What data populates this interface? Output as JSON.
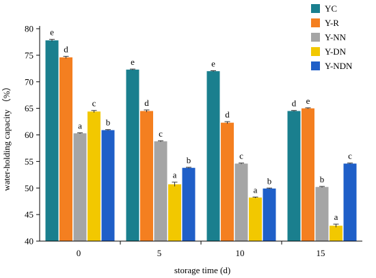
{
  "chart_data": {
    "type": "bar",
    "title": "",
    "xlabel": "storage time (d)",
    "ylabel": "water-holding capacity （%）",
    "ylim": [
      40,
      80
    ],
    "yticks": [
      40,
      45,
      50,
      55,
      60,
      65,
      70,
      75,
      80
    ],
    "categories": [
      "0",
      "5",
      "10",
      "15"
    ],
    "grid": false,
    "legend_position": "top-right",
    "series": [
      {
        "name": "YC",
        "color": "#1a7f8e",
        "values": [
          77.8,
          72.3,
          72.0,
          64.5
        ],
        "errors": [
          0.2,
          0.1,
          0.1,
          0.1
        ],
        "labels": [
          "e",
          "e",
          "e",
          "d"
        ]
      },
      {
        "name": "Y-R",
        "color": "#f47f20",
        "values": [
          74.6,
          64.5,
          62.3,
          65.0
        ],
        "errors": [
          0.2,
          0.2,
          0.2,
          0.1
        ],
        "labels": [
          "d",
          "d",
          "d",
          "e"
        ]
      },
      {
        "name": "Y-NN",
        "color": "#a5a5a5",
        "values": [
          60.3,
          58.8,
          54.6,
          50.2
        ],
        "errors": [
          0.1,
          0.1,
          0.1,
          0.1
        ],
        "labels": [
          "a",
          "c",
          "c",
          "b"
        ]
      },
      {
        "name": "Y-DN",
        "color": "#f2c800",
        "values": [
          64.4,
          50.7,
          48.2,
          42.9
        ],
        "errors": [
          0.2,
          0.4,
          0.1,
          0.3
        ],
        "labels": [
          "c",
          "a",
          "a",
          "a"
        ]
      },
      {
        "name": "Y-NDN",
        "color": "#1f5fc8",
        "values": [
          60.9,
          53.8,
          49.9,
          54.6
        ],
        "errors": [
          0.1,
          0.1,
          0.1,
          0.1
        ],
        "labels": [
          "b",
          "b",
          "b",
          "c"
        ]
      }
    ]
  }
}
